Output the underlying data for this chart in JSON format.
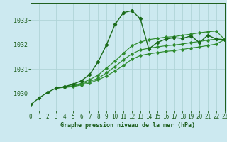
{
  "title": "Graphe pression niveau de la mer (hPa)",
  "yticks": [
    1030,
    1031,
    1032,
    1033
  ],
  "ylim": [
    1029.3,
    1033.7
  ],
  "xlim": [
    0,
    23
  ],
  "bg_color": "#cce9f0",
  "grid_color": "#b0d4d8",
  "line_color": "#1a6b1a",
  "line_color2": "#2d8b2d",
  "label_color": "#1a5c1a",
  "main_x": [
    0,
    1,
    2,
    3,
    4,
    5,
    6,
    7,
    8,
    9,
    10,
    11,
    12,
    13,
    14,
    15,
    16,
    17,
    18,
    19,
    20,
    21,
    22,
    23
  ],
  "main_y": [
    1029.55,
    1029.82,
    1030.05,
    1030.22,
    1030.28,
    1030.38,
    1030.52,
    1030.78,
    1031.3,
    1032.0,
    1032.82,
    1033.3,
    1033.38,
    1033.05,
    1031.82,
    1032.08,
    1032.22,
    1032.28,
    1032.25,
    1032.35,
    1032.08,
    1032.38,
    1032.22,
    1032.2
  ],
  "line2_x": [
    3,
    4,
    5,
    6,
    7,
    8,
    9,
    10,
    11,
    12,
    13,
    14,
    15,
    16,
    17,
    18,
    19,
    20,
    21,
    22,
    23
  ],
  "line2_y": [
    1030.22,
    1030.28,
    1030.32,
    1030.42,
    1030.57,
    1030.75,
    1031.05,
    1031.32,
    1031.65,
    1031.95,
    1032.1,
    1032.2,
    1032.25,
    1032.3,
    1032.32,
    1032.38,
    1032.42,
    1032.48,
    1032.52,
    1032.55,
    1032.2
  ],
  "line3_x": [
    3,
    4,
    5,
    6,
    7,
    8,
    9,
    10,
    11,
    12,
    13,
    14,
    15,
    16,
    17,
    18,
    19,
    20,
    21,
    22,
    23
  ],
  "line3_y": [
    1030.22,
    1030.26,
    1030.3,
    1030.38,
    1030.5,
    1030.62,
    1030.85,
    1031.1,
    1031.38,
    1031.62,
    1031.78,
    1031.85,
    1031.9,
    1031.95,
    1031.98,
    1032.02,
    1032.08,
    1032.12,
    1032.18,
    1032.22,
    1032.2
  ],
  "line4_x": [
    3,
    4,
    5,
    6,
    7,
    8,
    9,
    10,
    11,
    12,
    13,
    14,
    15,
    16,
    17,
    18,
    19,
    20,
    21,
    22,
    23
  ],
  "line4_y": [
    1030.22,
    1030.25,
    1030.28,
    1030.35,
    1030.44,
    1030.56,
    1030.72,
    1030.92,
    1031.15,
    1031.4,
    1031.55,
    1031.62,
    1031.67,
    1031.72,
    1031.75,
    1031.8,
    1031.86,
    1031.9,
    1031.96,
    1032.02,
    1032.2
  ],
  "tick_fontsize": 5.5,
  "label_fontsize": 6.0
}
